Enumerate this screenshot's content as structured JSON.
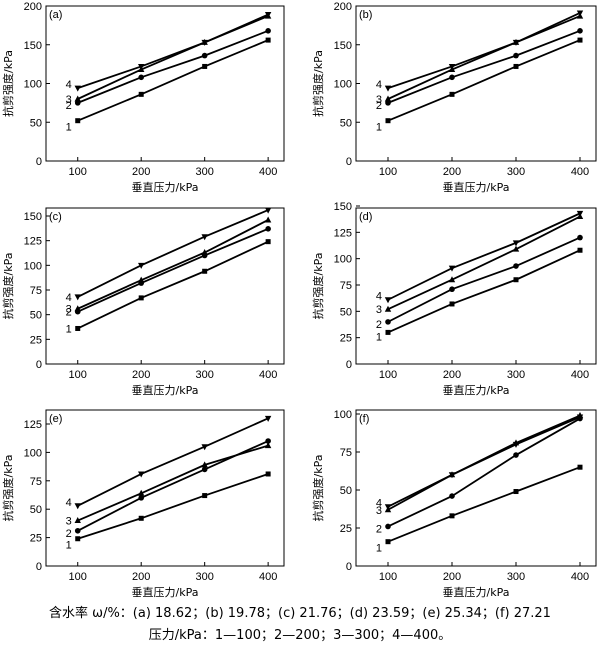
{
  "caption": {
    "moisture": "含水率 ω/%：(a) 18.62；(b) 19.78；(c) 21.76；(d) 23.59；(e) 25.34；(f) 27.21",
    "pressure": "压力/kPa：1—100；2—200；3—300；4—400。"
  },
  "chart_data": [
    {
      "type": "line",
      "panel_label": "(a)",
      "xlabel": "垂直压力/kPa",
      "ylabel": "抗剪强度/kPa",
      "xlim": [
        50,
        425
      ],
      "ylim": [
        0,
        200
      ],
      "xticks": [
        100,
        200,
        300,
        400
      ],
      "yticks": [
        0,
        50,
        100,
        150,
        200
      ],
      "x": [
        100,
        200,
        300,
        400
      ],
      "series": [
        {
          "name": "1",
          "marker": "square",
          "values": [
            52,
            86,
            122,
            156
          ]
        },
        {
          "name": "2",
          "marker": "circle",
          "values": [
            75,
            108,
            136,
            168
          ]
        },
        {
          "name": "3",
          "marker": "triangle-up",
          "values": [
            80,
            118,
            153,
            187
          ]
        },
        {
          "name": "4",
          "marker": "triangle-down",
          "values": [
            94,
            122,
            153,
            189
          ]
        }
      ]
    },
    {
      "type": "line",
      "panel_label": "(b)",
      "xlabel": "垂直压力/kPa",
      "ylabel": "抗剪强度/kPa",
      "xlim": [
        50,
        425
      ],
      "ylim": [
        0,
        200
      ],
      "xticks": [
        100,
        200,
        300,
        400
      ],
      "yticks": [
        0,
        50,
        100,
        150,
        200
      ],
      "x": [
        100,
        200,
        300,
        400
      ],
      "series": [
        {
          "name": "1",
          "marker": "square",
          "values": [
            52,
            86,
            122,
            156
          ]
        },
        {
          "name": "2",
          "marker": "circle",
          "values": [
            75,
            108,
            136,
            168
          ]
        },
        {
          "name": "3",
          "marker": "triangle-up",
          "values": [
            80,
            118,
            153,
            187
          ]
        },
        {
          "name": "4",
          "marker": "triangle-down",
          "values": [
            94,
            122,
            153,
            191
          ]
        }
      ]
    },
    {
      "type": "line",
      "panel_label": "(c)",
      "xlabel": "垂直压力/kPa",
      "ylabel": "抗剪强度/kPa",
      "xlim": [
        50,
        425
      ],
      "ylim": [
        0,
        160
      ],
      "xticks": [
        100,
        200,
        300,
        400
      ],
      "yticks": [
        0,
        25,
        50,
        75,
        100,
        125,
        150
      ],
      "x": [
        100,
        200,
        300,
        400
      ],
      "series": [
        {
          "name": "1",
          "marker": "square",
          "values": [
            36,
            67,
            94,
            124
          ]
        },
        {
          "name": "2",
          "marker": "circle",
          "values": [
            53,
            82,
            110,
            137
          ]
        },
        {
          "name": "3",
          "marker": "triangle-up",
          "values": [
            56,
            85,
            113,
            146
          ]
        },
        {
          "name": "4",
          "marker": "triangle-down",
          "values": [
            68,
            100,
            129,
            156
          ]
        }
      ]
    },
    {
      "type": "line",
      "panel_label": "(d)",
      "xlabel": "垂直压力/kPa",
      "ylabel": "抗剪强度/kPa",
      "xlim": [
        50,
        425
      ],
      "ylim": [
        0,
        150
      ],
      "xticks": [
        100,
        200,
        300,
        400
      ],
      "yticks": [
        0,
        25,
        50,
        75,
        100,
        125,
        150
      ],
      "x": [
        100,
        200,
        300,
        400
      ],
      "series": [
        {
          "name": "1",
          "marker": "square",
          "values": [
            30,
            57,
            80,
            108
          ]
        },
        {
          "name": "2",
          "marker": "circle",
          "values": [
            40,
            71,
            93,
            120
          ]
        },
        {
          "name": "3",
          "marker": "triangle-up",
          "values": [
            52,
            80,
            109,
            140
          ]
        },
        {
          "name": "4",
          "marker": "triangle-down",
          "values": [
            61,
            91,
            115,
            143
          ]
        }
      ]
    },
    {
      "type": "line",
      "panel_label": "(e)",
      "xlabel": "垂直压力/kPa",
      "ylabel": "抗剪强度/kPa",
      "xlim": [
        50,
        425
      ],
      "ylim": [
        0,
        135
      ],
      "xticks": [
        100,
        200,
        300,
        400
      ],
      "yticks": [
        0,
        25,
        50,
        75,
        100,
        125
      ],
      "x": [
        100,
        200,
        300,
        400
      ],
      "series": [
        {
          "name": "1",
          "marker": "square",
          "values": [
            24,
            42,
            62,
            81
          ]
        },
        {
          "name": "2",
          "marker": "circle",
          "values": [
            31,
            60,
            85,
            110
          ]
        },
        {
          "name": "3",
          "marker": "triangle-up",
          "values": [
            40,
            64,
            89,
            106
          ]
        },
        {
          "name": "4",
          "marker": "triangle-down",
          "values": [
            53,
            81,
            105,
            130
          ]
        }
      ]
    },
    {
      "type": "line",
      "panel_label": "(f)",
      "xlabel": "垂直压力/kPa",
      "ylabel": "抗剪强度/kPa",
      "xlim": [
        50,
        425
      ],
      "ylim": [
        0,
        110
      ],
      "xticks": [
        100,
        200,
        300,
        400
      ],
      "yticks": [
        0,
        25,
        50,
        75,
        100
      ],
      "x": [
        100,
        200,
        300,
        400
      ],
      "series": [
        {
          "name": "1",
          "marker": "square",
          "values": [
            16,
            33,
            49,
            65
          ]
        },
        {
          "name": "2",
          "marker": "circle",
          "values": [
            26,
            46,
            73,
            97
          ]
        },
        {
          "name": "3",
          "marker": "triangle-up",
          "values": [
            37,
            60,
            81,
            99
          ]
        },
        {
          "name": "4",
          "marker": "triangle-down",
          "values": [
            39,
            60,
            80,
            98
          ]
        }
      ]
    }
  ]
}
